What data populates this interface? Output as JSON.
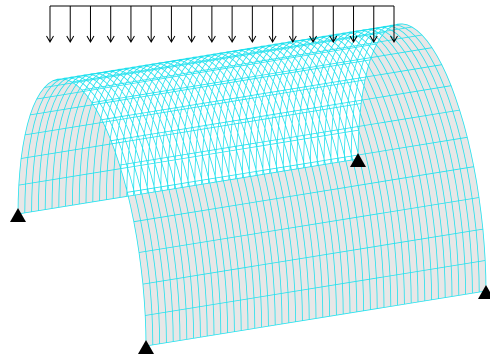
{
  "diagram": {
    "type": "shell-structure-fe-mesh",
    "mesh_color": "#22e1ee",
    "shell_fill_color": "#e7e7e7",
    "load_color": "#000000",
    "support_color": "#000000",
    "load": {
      "kind": "uniformly-distributed-vertical",
      "arrow_count": 18
    },
    "mesh": {
      "arc_divisions": 20,
      "length_divisions": 50
    },
    "supports": [
      {
        "id": "front-left",
        "type": "pin"
      },
      {
        "id": "front-right",
        "type": "pin"
      },
      {
        "id": "back-left",
        "type": "pin"
      },
      {
        "id": "back-right",
        "type": "pin"
      }
    ]
  }
}
